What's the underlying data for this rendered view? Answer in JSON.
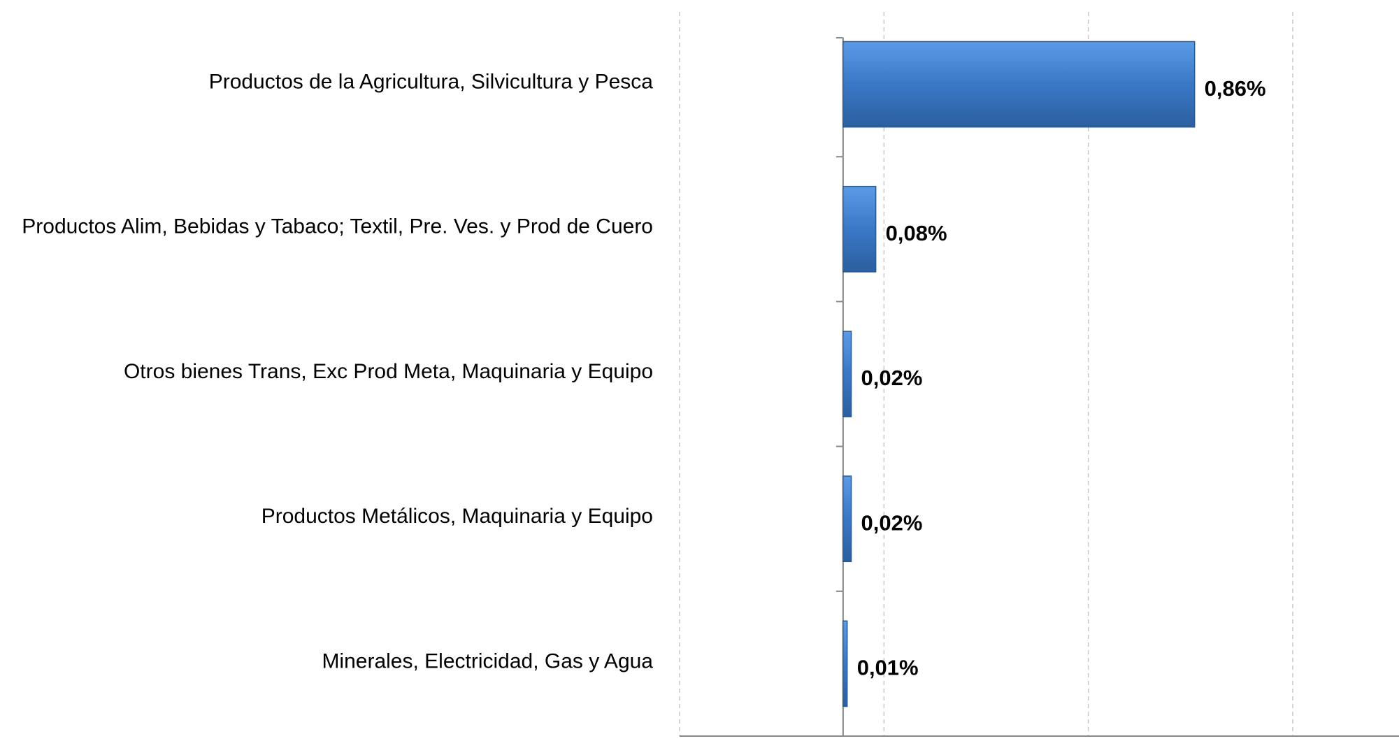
{
  "chart_data": {
    "type": "bar",
    "orientation": "horizontal",
    "categories": [
      "Productos de la Agricultura, Silvicultura y Pesca",
      "Productos  Alim, Bebidas y Tabaco; Textil, Pre. Ves. y Prod de Cuero",
      "Otros bienes Trans, Exc Prod Meta, Maquinaria y Equipo",
      "Productos Metálicos, Maquinaria y Equipo",
      "Minerales, Electricidad, Gas y Agua"
    ],
    "values": [
      0.86,
      0.08,
      0.02,
      0.02,
      0.01
    ],
    "value_labels": [
      "0,86%",
      "0,08%",
      "0,02%",
      "0,02%",
      "0,01%"
    ],
    "color": "#3a78c6",
    "xlim": [
      -0.4,
      1.36
    ],
    "xticks": [
      -0.4,
      0.1,
      0.6,
      1.1
    ],
    "grid": true
  }
}
